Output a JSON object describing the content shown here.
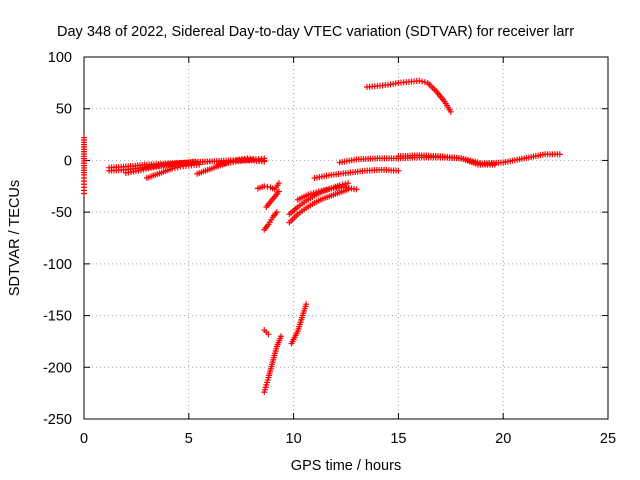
{
  "chart_data": {
    "type": "scatter",
    "title": "Day 348 of 2022, Sidereal Day-to-day VTEC variation (SDTVAR) for receiver larr",
    "xlabel": "GPS time / hours",
    "ylabel": "SDTVAR / TECUs",
    "xlim": [
      0,
      25
    ],
    "ylim": [
      -250,
      100
    ],
    "xticks": [
      0,
      5,
      10,
      15,
      20,
      25
    ],
    "yticks": [
      -250,
      -200,
      -150,
      -100,
      -50,
      0,
      50,
      100
    ],
    "grid": true,
    "marker": "+",
    "color": "#ff0000",
    "series": [
      {
        "points": [
          [
            0,
            22
          ],
          [
            0,
            -14
          ],
          [
            0,
            -20
          ],
          [
            0,
            -26
          ],
          [
            0,
            -32
          ]
        ]
      },
      {
        "points": [
          [
            1.2,
            -7
          ],
          [
            2,
            -6
          ],
          [
            3,
            -4
          ],
          [
            4,
            -3
          ],
          [
            5,
            -2
          ],
          [
            6,
            -1
          ],
          [
            7,
            0
          ],
          [
            8,
            0
          ],
          [
            8.6,
            -1
          ]
        ]
      },
      {
        "points": [
          [
            1.2,
            -10
          ],
          [
            2,
            -9
          ],
          [
            2.8,
            -7
          ],
          [
            3.6,
            -5
          ],
          [
            4.4,
            -3
          ],
          [
            5.2,
            -2
          ],
          [
            6,
            -1
          ]
        ]
      },
      {
        "points": [
          [
            2,
            -12
          ],
          [
            2.6,
            -10
          ],
          [
            3.2,
            -7
          ],
          [
            3.8,
            -5
          ],
          [
            4.6,
            -3
          ],
          [
            5.3,
            -1
          ]
        ]
      },
      {
        "points": [
          [
            3,
            -17
          ],
          [
            3.4,
            -14
          ],
          [
            3.8,
            -11
          ],
          [
            4.2,
            -8
          ],
          [
            4.6,
            -6
          ],
          [
            5,
            -5
          ],
          [
            5.5,
            -4
          ]
        ]
      },
      {
        "points": [
          [
            5.4,
            -13
          ],
          [
            5.8,
            -10
          ],
          [
            6.2,
            -7
          ],
          [
            6.6,
            -4
          ],
          [
            7,
            -1
          ],
          [
            7.4,
            1
          ],
          [
            7.8,
            2
          ],
          [
            8.2,
            1
          ],
          [
            8.6,
            0
          ]
        ]
      },
      {
        "points": [
          [
            6.4,
            -4
          ],
          [
            7,
            -2
          ],
          [
            7.6,
            0
          ],
          [
            8.2,
            1
          ],
          [
            8.6,
            2
          ]
        ]
      },
      {
        "points": [
          [
            8.3,
            -27
          ],
          [
            8.6,
            -25
          ],
          [
            8.9,
            -26
          ],
          [
            9.1,
            -28
          ],
          [
            9.3,
            -22
          ]
        ]
      },
      {
        "points": [
          [
            8.7,
            -45
          ],
          [
            8.9,
            -40
          ],
          [
            9.1,
            -35
          ],
          [
            9.3,
            -30
          ]
        ]
      },
      {
        "points": [
          [
            8.6,
            -67
          ],
          [
            8.8,
            -62
          ],
          [
            9,
            -55
          ],
          [
            9.2,
            -50
          ]
        ]
      },
      {
        "points": [
          [
            8.6,
            -164
          ],
          [
            8.8,
            -168
          ]
        ]
      },
      {
        "points": [
          [
            8.6,
            -224
          ],
          [
            8.8,
            -210
          ],
          [
            9,
            -195
          ],
          [
            9.2,
            -180
          ],
          [
            9.4,
            -170
          ]
        ]
      },
      {
        "points": [
          [
            9.8,
            -60
          ],
          [
            10.2,
            -52
          ],
          [
            10.6,
            -46
          ],
          [
            11,
            -41
          ],
          [
            11.4,
            -37
          ],
          [
            11.8,
            -34
          ],
          [
            12.2,
            -31
          ],
          [
            12.6,
            -28
          ]
        ]
      },
      {
        "points": [
          [
            9.8,
            -52
          ],
          [
            10.2,
            -45
          ],
          [
            10.6,
            -39
          ],
          [
            11,
            -34
          ],
          [
            11.4,
            -30
          ],
          [
            11.8,
            -27
          ],
          [
            12.2,
            -24
          ],
          [
            12.6,
            -22
          ]
        ]
      },
      {
        "points": [
          [
            10.2,
            -38
          ],
          [
            10.7,
            -33
          ],
          [
            11.2,
            -30
          ],
          [
            11.8,
            -27
          ],
          [
            12.4,
            -26
          ],
          [
            13,
            -28
          ]
        ]
      },
      {
        "points": [
          [
            11,
            -17
          ],
          [
            11.8,
            -14
          ],
          [
            12.6,
            -12
          ],
          [
            13.4,
            -10
          ],
          [
            14.2,
            -9
          ],
          [
            15,
            -10
          ]
        ]
      },
      {
        "points": [
          [
            12.2,
            -2
          ],
          [
            13,
            1
          ],
          [
            14,
            2
          ],
          [
            15,
            2
          ],
          [
            16,
            3
          ],
          [
            17,
            3
          ],
          [
            18,
            2
          ],
          [
            19,
            -3
          ],
          [
            20,
            -2
          ],
          [
            21,
            2
          ],
          [
            22,
            6
          ],
          [
            22.7,
            6
          ]
        ]
      },
      {
        "points": [
          [
            15,
            4
          ],
          [
            16,
            5
          ],
          [
            17,
            4
          ],
          [
            18,
            2
          ],
          [
            18.8,
            -4
          ],
          [
            19.6,
            -4
          ]
        ]
      },
      {
        "points": [
          [
            9.9,
            -177
          ],
          [
            10.2,
            -165
          ],
          [
            10.4,
            -152
          ],
          [
            10.6,
            -139
          ]
        ]
      },
      {
        "points": [
          [
            13.5,
            71
          ],
          [
            14,
            72
          ],
          [
            14.5,
            73
          ],
          [
            15,
            75
          ],
          [
            15.5,
            76
          ],
          [
            16,
            77
          ],
          [
            16.4,
            75
          ],
          [
            16.8,
            67
          ],
          [
            17.2,
            57
          ],
          [
            17.5,
            47
          ]
        ]
      }
    ]
  }
}
